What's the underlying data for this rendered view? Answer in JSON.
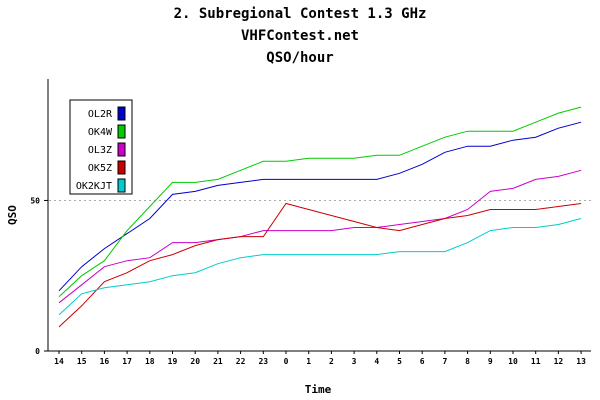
{
  "chart_data": {
    "type": "line",
    "title": "2. Subregional Contest 1.3 GHz",
    "subtitle": "VHFContest.net",
    "subtitle2": "QSO/hour",
    "xlabel": "Time",
    "ylabel": "QSO",
    "categories": [
      "14",
      "15",
      "16",
      "17",
      "18",
      "19",
      "20",
      "21",
      "22",
      "23",
      "0",
      "1",
      "2",
      "3",
      "4",
      "5",
      "6",
      "7",
      "8",
      "9",
      "10",
      "11",
      "12",
      "13"
    ],
    "ylim": [
      0,
      90
    ],
    "yticks": [
      "0",
      "50"
    ],
    "reference_line": 50,
    "legend_position": "top-left",
    "series": [
      {
        "name": "OL2R",
        "color": "#0000cc",
        "values": [
          20,
          28,
          34,
          39,
          44,
          52,
          53,
          55,
          56,
          57,
          57,
          57,
          57,
          57,
          57,
          59,
          62,
          66,
          68,
          68,
          70,
          71,
          74,
          76
        ]
      },
      {
        "name": "OK4W",
        "color": "#00cc00",
        "values": [
          18,
          25,
          30,
          40,
          48,
          56,
          56,
          57,
          60,
          63,
          63,
          64,
          64,
          64,
          65,
          65,
          68,
          71,
          73,
          73,
          73,
          76,
          79,
          81
        ]
      },
      {
        "name": "OL3Z",
        "color": "#cc00cc",
        "values": [
          16,
          22,
          28,
          30,
          31,
          36,
          36,
          37,
          38,
          40,
          40,
          40,
          40,
          41,
          41,
          42,
          43,
          44,
          47,
          53,
          54,
          57,
          58,
          60
        ]
      },
      {
        "name": "OK5Z",
        "color": "#cc0000",
        "values": [
          8,
          15,
          23,
          26,
          30,
          32,
          35,
          37,
          38,
          38,
          49,
          47,
          45,
          43,
          41,
          40,
          42,
          44,
          45,
          47,
          47,
          47,
          48,
          49
        ]
      },
      {
        "name": "OK2KJT",
        "color": "#00cccc",
        "values": [
          12,
          19,
          21,
          22,
          23,
          25,
          26,
          29,
          31,
          32,
          32,
          32,
          32,
          32,
          32,
          33,
          33,
          33,
          36,
          40,
          41,
          41,
          42,
          44
        ]
      }
    ]
  }
}
